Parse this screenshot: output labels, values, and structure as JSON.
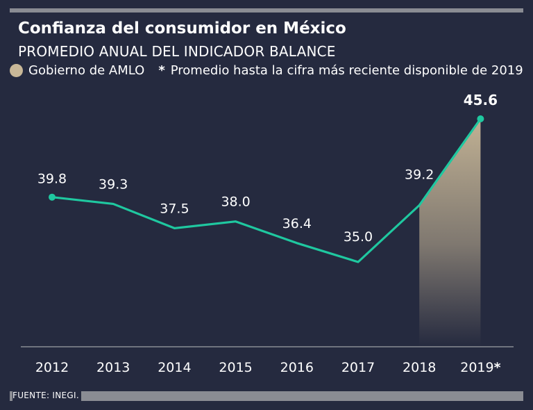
{
  "title": "Confianza del consumidor en México",
  "subtitle": "PROMEDIO ANUAL DEL INDICADOR BALANCE",
  "legend": {
    "shaded_label": "Gobierno de AMLO",
    "star": "*",
    "note": "Promedio hasta la cifra más reciente disponible de 2019"
  },
  "source": "FUENTE: INEGI.",
  "colors": {
    "background": "#252a3f",
    "line": "#1fc8a0",
    "shade": "#c9b898",
    "rule": "#8a8c93"
  },
  "chart_data": {
    "type": "line",
    "title": "Confianza del consumidor en México",
    "subtitle": "PROMEDIO ANUAL DEL INDICADOR BALANCE",
    "categories": [
      "2012",
      "2013",
      "2014",
      "2015",
      "2016",
      "2017",
      "2018",
      "2019*"
    ],
    "series": [
      {
        "values": [
          39.8,
          39.3,
          37.5,
          38.0,
          36.4,
          35.0,
          39.2,
          45.6
        ]
      }
    ],
    "data_labels": [
      "39.8",
      "39.3",
      "37.5",
      "38.0",
      "36.4",
      "35.0",
      "39.2",
      "45.6"
    ],
    "shaded_range": [
      "2018",
      "2019*"
    ],
    "markers_on": [
      "2012",
      "2019*"
    ],
    "grid": false,
    "legend_position": "top-left"
  }
}
